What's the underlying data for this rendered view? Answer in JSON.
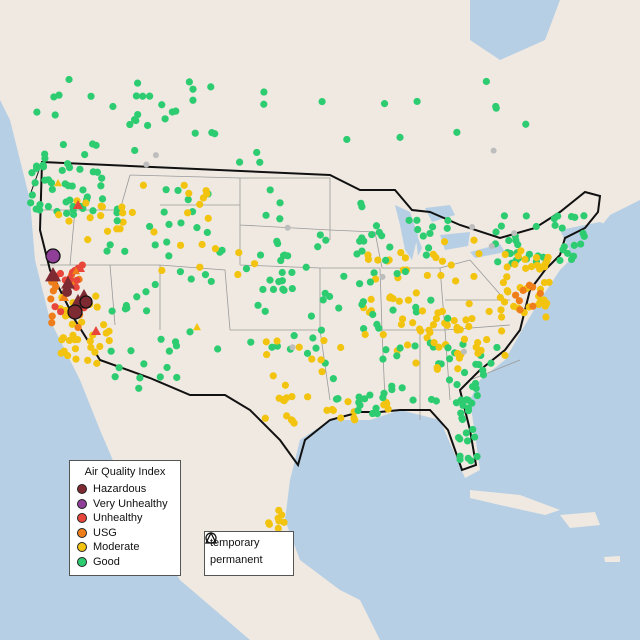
{
  "legend": {
    "title": "Air Quality Index",
    "categories": [
      {
        "label": "Hazardous",
        "color": "#7e2a32"
      },
      {
        "label": "Very Unhealthy",
        "color": "#8f3f97"
      },
      {
        "label": "Unhealthy",
        "color": "#e8463a"
      },
      {
        "label": "USG",
        "color": "#ef7e1a"
      },
      {
        "label": "Moderate",
        "color": "#f2c40f"
      },
      {
        "label": "Good",
        "color": "#2ecc71"
      }
    ]
  },
  "monitor_types": {
    "temporary": "temporary",
    "permanent": "permanent"
  },
  "colors": {
    "land": "#efe9e1",
    "water": "#b6cfe4",
    "border": "#111111",
    "state_line": "#9a9a9a",
    "inactive": "#bdbdbd"
  }
}
